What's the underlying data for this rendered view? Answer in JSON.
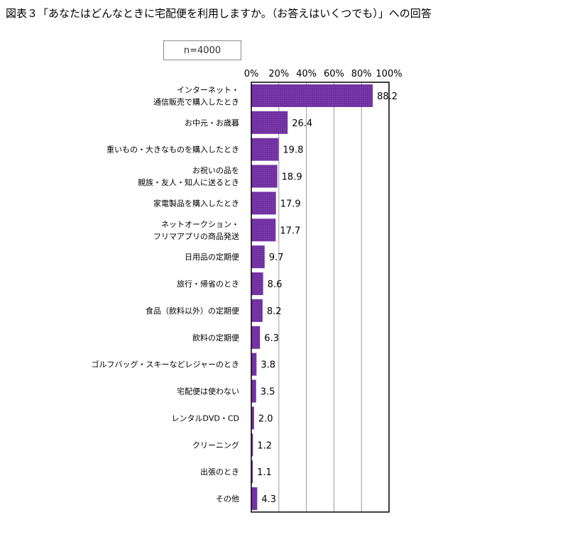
{
  "title": "図表３「あなたはどんなときに宅配便を利用しますか。（お答えはいくつでも）」への回答",
  "sample_note": "n=4000",
  "chart_data": {
    "type": "bar",
    "orientation": "horizontal",
    "categories": [
      [
        "インターネット・",
        "通信販売で購入したとき"
      ],
      [
        "お中元・お歳暮"
      ],
      [
        "重いもの・大きなものを購入したとき"
      ],
      [
        "お祝いの品を",
        "親族・友人・知人に送るとき"
      ],
      [
        "家電製品を購入したとき"
      ],
      [
        "ネットオークション・",
        "フリマアプリの商品発送"
      ],
      [
        "日用品の定期便"
      ],
      [
        "旅行・帰省のとき"
      ],
      [
        "食品（飲料以外）の定期便"
      ],
      [
        "飲料の定期便"
      ],
      [
        "ゴルフバッグ・スキーなどレジャーのとき"
      ],
      [
        "宅配便は使わない"
      ],
      [
        "レンタルDVD・CD"
      ],
      [
        "クリーニング"
      ],
      [
        "出張のとき"
      ],
      [
        "その他"
      ]
    ],
    "values": [
      88.2,
      26.4,
      19.8,
      18.9,
      17.9,
      17.7,
      9.7,
      8.6,
      8.2,
      6.3,
      3.8,
      3.5,
      2.0,
      1.2,
      1.1,
      4.3
    ],
    "value_labels": [
      "88.2",
      "26.4",
      "19.8",
      "18.9",
      "17.9",
      "17.7",
      "9.7",
      "8.6",
      "8.2",
      "6.3",
      "3.8",
      "3.5",
      "2.0",
      "1.2",
      "1.1",
      "4.3"
    ],
    "xticks": [
      "0%",
      "20%",
      "40%",
      "60%",
      "80%",
      "100%"
    ],
    "xlim": [
      0,
      100
    ],
    "grid": true,
    "bar_color": "#7030a0"
  }
}
